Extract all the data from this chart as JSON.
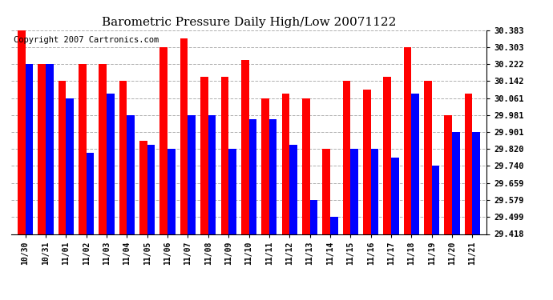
{
  "title": "Barometric Pressure Daily High/Low 20071122",
  "copyright": "Copyright 2007 Cartronics.com",
  "categories": [
    "10/30",
    "10/31",
    "11/01",
    "11/02",
    "11/03",
    "11/04",
    "11/05",
    "11/06",
    "11/07",
    "11/08",
    "11/09",
    "11/10",
    "11/11",
    "11/12",
    "11/13",
    "11/14",
    "11/15",
    "11/16",
    "11/17",
    "11/18",
    "11/19",
    "11/20",
    "11/21"
  ],
  "highs": [
    30.383,
    30.222,
    30.142,
    30.222,
    30.222,
    30.142,
    29.86,
    30.303,
    30.343,
    30.162,
    30.162,
    30.242,
    30.061,
    30.081,
    30.061,
    29.82,
    30.142,
    30.101,
    30.162,
    30.303,
    30.142,
    29.981,
    30.081
  ],
  "lows": [
    30.222,
    30.222,
    30.061,
    29.801,
    30.081,
    29.981,
    29.84,
    29.82,
    29.981,
    29.981,
    29.82,
    29.961,
    29.961,
    29.841,
    29.579,
    29.499,
    29.82,
    29.82,
    29.78,
    30.081,
    29.74,
    29.901,
    29.901
  ],
  "yticks": [
    29.418,
    29.499,
    29.579,
    29.659,
    29.74,
    29.82,
    29.901,
    29.981,
    30.061,
    30.142,
    30.222,
    30.303,
    30.383
  ],
  "ymin": 29.418,
  "ymax": 30.383,
  "bar_color_high": "#ff0000",
  "bar_color_low": "#0000ff",
  "background_color": "#ffffff",
  "plot_background": "#ffffff",
  "grid_color": "#b0b0b0",
  "title_fontsize": 11,
  "copyright_fontsize": 7.5
}
